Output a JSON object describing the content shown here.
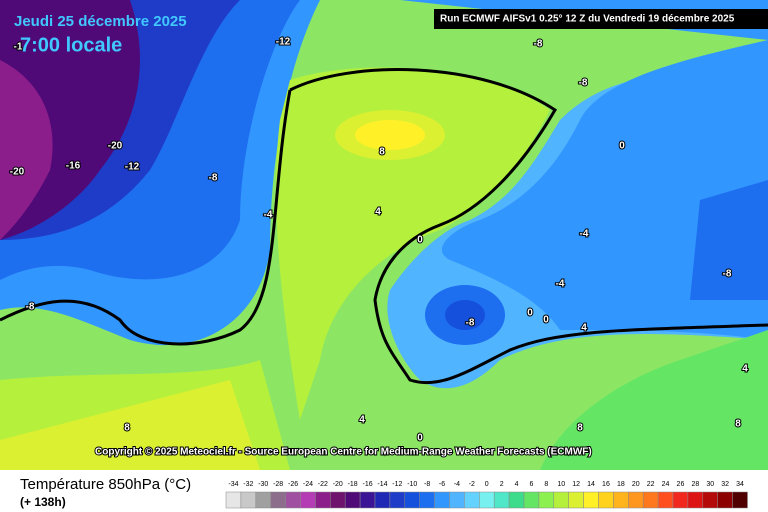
{
  "header": {
    "date": "Jeudi 25 décembre 2025",
    "time": "7:00 locale",
    "run": "Run ECMWF AIFSv1 0.25° 12 Z du Vendredi 19 décembre 2025"
  },
  "copyright": "Copyright © 2025 Meteociel.fr - Source European Centre for Medium-Range Weather Forecasts (ECMWF)",
  "footer": {
    "title": "Température 850hPa (°C)",
    "lead": "(+ 138h)"
  },
  "contour_labels": [
    -1,
    -12,
    -8,
    -8,
    -20,
    -16,
    -12,
    -20,
    -8,
    8,
    0,
    -4,
    4,
    0,
    -4,
    -8,
    -4,
    -8,
    -8,
    0,
    0,
    4,
    4,
    4,
    8,
    0,
    8,
    8
  ],
  "legend": [
    {
      "value": -34,
      "color": "#e6e6e6"
    },
    {
      "value": -32,
      "color": "#c8c8c8"
    },
    {
      "value": -30,
      "color": "#a0a0a0"
    },
    {
      "value": -28,
      "color": "#8c6e8c"
    },
    {
      "value": -26,
      "color": "#a050a0"
    },
    {
      "value": -24,
      "color": "#b43cb4"
    },
    {
      "value": -22,
      "color": "#8c1e8c"
    },
    {
      "value": -20,
      "color": "#6e146e"
    },
    {
      "value": -18,
      "color": "#500a78"
    },
    {
      "value": -16,
      "color": "#3c1496"
    },
    {
      "value": -14,
      "color": "#1e28b4"
    },
    {
      "value": -12,
      "color": "#1e3cc8"
    },
    {
      "value": -10,
      "color": "#1450dc"
    },
    {
      "value": -8,
      "color": "#1e6ef0"
    },
    {
      "value": -6,
      "color": "#3296ff"
    },
    {
      "value": -4,
      "color": "#50b4ff"
    },
    {
      "value": -2,
      "color": "#64d2ff"
    },
    {
      "value": 0,
      "color": "#78f0f0"
    },
    {
      "value": 2,
      "color": "#50e6c8"
    },
    {
      "value": 4,
      "color": "#3cdc8c"
    },
    {
      "value": 6,
      "color": "#64e664"
    },
    {
      "value": 8,
      "color": "#8cf050"
    },
    {
      "value": 10,
      "color": "#b4f03c"
    },
    {
      "value": 12,
      "color": "#dcf032"
    },
    {
      "value": 14,
      "color": "#fff028"
    },
    {
      "value": 16,
      "color": "#ffd21e"
    },
    {
      "value": 18,
      "color": "#ffb41e"
    },
    {
      "value": 20,
      "color": "#ff961e"
    },
    {
      "value": 22,
      "color": "#ff781e"
    },
    {
      "value": 24,
      "color": "#ff501e"
    },
    {
      "value": 26,
      "color": "#f0281e"
    },
    {
      "value": 28,
      "color": "#dc1414"
    },
    {
      "value": 30,
      "color": "#b40a0a"
    },
    {
      "value": 32,
      "color": "#8c0000"
    },
    {
      "value": 34,
      "color": "#500000"
    }
  ]
}
